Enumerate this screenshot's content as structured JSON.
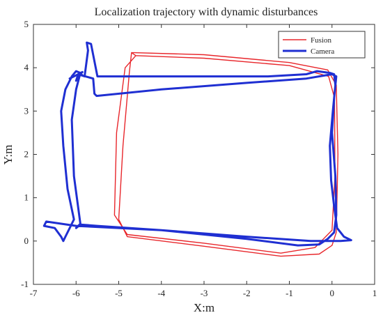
{
  "chart_data": {
    "type": "line",
    "title": "Localization trajectory with dynamic disturbances",
    "xlabel": "X:m",
    "ylabel": "Y:m",
    "xlim": [
      -7,
      1
    ],
    "ylim": [
      -1,
      5
    ],
    "xticks": [
      -7,
      -6,
      -5,
      -4,
      -3,
      -2,
      -1,
      0,
      1
    ],
    "yticks": [
      -1,
      0,
      1,
      2,
      3,
      4,
      5
    ],
    "grid": false,
    "legend_position": "top-right",
    "series": [
      {
        "name": "Fusion",
        "color": "#e8262b",
        "style": "thin",
        "x": [
          -4.7,
          -3.0,
          -1.0,
          -0.1,
          0.1,
          0.14,
          0.1,
          0.0,
          -0.3,
          -1.2,
          -3.0,
          -4.8,
          -5.0,
          -4.9,
          -4.75,
          -4.7,
          -4.6,
          -3.0,
          -1.0,
          -0.08,
          0.06,
          0.07,
          0.0,
          -0.4,
          -1.2,
          -3.0,
          -4.8,
          -5.1,
          -5.05,
          -4.85,
          -4.6
        ],
        "y": [
          4.35,
          4.3,
          4.12,
          3.95,
          3.6,
          2.0,
          0.2,
          -0.1,
          -0.3,
          -0.35,
          -0.12,
          0.1,
          0.5,
          2.2,
          3.9,
          4.35,
          4.28,
          4.22,
          4.05,
          3.8,
          3.3,
          1.5,
          0.25,
          -0.15,
          -0.28,
          -0.05,
          0.15,
          0.6,
          2.5,
          4.0,
          4.28
        ]
      },
      {
        "name": "Camera",
        "color": "#1f2fd2",
        "style": "thick",
        "x": [
          -6.0,
          -5.95,
          -5.8,
          -5.72,
          -5.75,
          -5.65,
          -5.5,
          -3.5,
          -1.5,
          -0.6,
          -0.35,
          -0.05,
          0.05,
          0.08,
          0.02,
          -0.05,
          -0.02,
          0.05,
          0.12,
          0.28,
          0.45,
          0.2,
          -0.5,
          -2.0,
          -4.0,
          -6.0,
          -6.7,
          -6.75,
          -6.5,
          -6.35,
          -6.3,
          -6.25,
          -6.15,
          -6.05,
          -6.2,
          -6.3,
          -6.35,
          -6.25,
          -6.1,
          -6.0,
          -5.9,
          -5.85,
          -5.6,
          -5.57,
          -5.52,
          -4.0,
          -2.0,
          -0.6,
          0.0,
          0.1,
          0.05,
          0.0,
          0.08,
          0.1,
          0.05,
          -0.1,
          -0.3,
          -0.8,
          -2.0,
          -4.0,
          -5.5,
          -5.9,
          -6.0,
          -5.9,
          -6.05,
          -6.1,
          -6.0,
          -5.9,
          -5.85,
          -6.15
        ],
        "y": [
          3.7,
          3.85,
          3.8,
          4.4,
          4.58,
          4.55,
          3.8,
          3.8,
          3.8,
          3.85,
          3.92,
          3.88,
          3.85,
          3.6,
          3.0,
          2.2,
          1.4,
          0.8,
          0.3,
          0.1,
          0.02,
          0.0,
          0.0,
          0.1,
          0.25,
          0.35,
          0.45,
          0.35,
          0.3,
          0.1,
          0.0,
          0.1,
          0.3,
          0.5,
          1.2,
          2.2,
          3.0,
          3.5,
          3.8,
          3.92,
          3.88,
          3.82,
          3.75,
          3.4,
          3.35,
          3.5,
          3.65,
          3.75,
          3.85,
          3.8,
          3.3,
          2.5,
          1.5,
          0.6,
          0.2,
          0.05,
          -0.08,
          -0.1,
          0.05,
          0.25,
          0.35,
          0.38,
          0.3,
          0.4,
          1.5,
          2.8,
          3.5,
          3.88,
          3.9,
          3.75
        ]
      }
    ]
  }
}
